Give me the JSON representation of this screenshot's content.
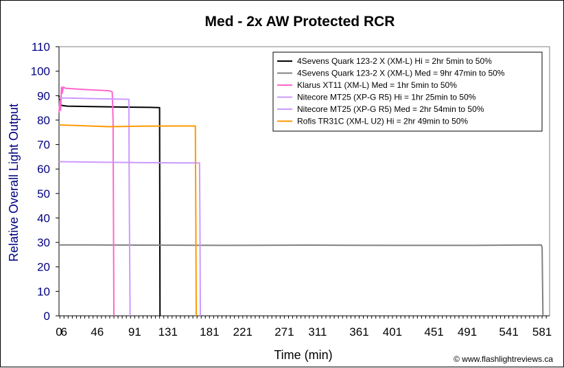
{
  "chart_data": {
    "type": "line",
    "title": "Med - 2x AW Protected RCR",
    "xlabel": "Time (min)",
    "ylabel": "Relative Overall Light Output",
    "xlim": [
      0,
      590
    ],
    "ylim": [
      0,
      110
    ],
    "x_ticks": [
      "0",
      "6",
      "46",
      "91",
      "131",
      "181",
      "221",
      "271",
      "311",
      "361",
      "401",
      "451",
      "491",
      "541",
      "581"
    ],
    "y_ticks": [
      "0",
      "10",
      "20",
      "30",
      "40",
      "50",
      "60",
      "70",
      "80",
      "90",
      "100",
      "110"
    ],
    "grid": false,
    "legend_position": "top-right",
    "credit": "© www.flashlightreviews.ca",
    "series": [
      {
        "name": "4Sevens Quark 123-2 X (XM-L) Hi = 2hr 5min to 50%",
        "color": "#000000",
        "points": [
          [
            0,
            90
          ],
          [
            1,
            87
          ],
          [
            3,
            86
          ],
          [
            10,
            85.7
          ],
          [
            40,
            85.5
          ],
          [
            80,
            85.3
          ],
          [
            110,
            85.2
          ],
          [
            121,
            85.1
          ],
          [
            121.5,
            0
          ]
        ]
      },
      {
        "name": "4Sevens Quark 123-2 X (XM-L) Med = 9hr 47min to 50%",
        "color": "#808080",
        "points": [
          [
            0,
            29
          ],
          [
            100,
            28.9
          ],
          [
            200,
            28.8
          ],
          [
            300,
            28.9
          ],
          [
            400,
            28.8
          ],
          [
            500,
            28.8
          ],
          [
            580,
            29
          ],
          [
            581,
            28
          ],
          [
            582,
            0
          ]
        ]
      },
      {
        "name": "Klarus XT11 (XM-L) Med = 1hr 5min to 50%",
        "color": "#ff66cc",
        "points": [
          [
            0,
            83
          ],
          [
            1,
            88
          ],
          [
            2,
            84
          ],
          [
            3,
            93.5
          ],
          [
            4,
            91
          ],
          [
            5,
            93.5
          ],
          [
            8,
            93
          ],
          [
            30,
            92.5
          ],
          [
            60,
            92
          ],
          [
            64,
            91.5
          ],
          [
            65,
            80
          ],
          [
            66,
            0
          ]
        ]
      },
      {
        "name": "Nitecore MT25 (XP-G R5) Hi = 1hr 25min to 50%",
        "color": "#cc99ff",
        "points": [
          [
            0,
            89
          ],
          [
            10,
            89
          ],
          [
            50,
            88.7
          ],
          [
            84,
            88.5
          ],
          [
            84.5,
            50
          ],
          [
            85.5,
            0
          ]
        ]
      },
      {
        "name": "Nitecore MT25 (XP-G R5) Med = 2hr 54min to 50%",
        "color": "#cc99ff",
        "points": [
          [
            0,
            63
          ],
          [
            50,
            62.8
          ],
          [
            100,
            62.6
          ],
          [
            140,
            62.5
          ],
          [
            169,
            62.5
          ],
          [
            169.5,
            40
          ],
          [
            170,
            0
          ]
        ]
      },
      {
        "name": "Rofis TR31C (XM-L U2) Hi = 2hr 49min to 50%",
        "color": "#ff9900",
        "points": [
          [
            0,
            78
          ],
          [
            20,
            77.8
          ],
          [
            60,
            77.3
          ],
          [
            100,
            77.5
          ],
          [
            140,
            77.6
          ],
          [
            164,
            77.6
          ],
          [
            164.5,
            40
          ],
          [
            165,
            0
          ]
        ]
      }
    ]
  }
}
